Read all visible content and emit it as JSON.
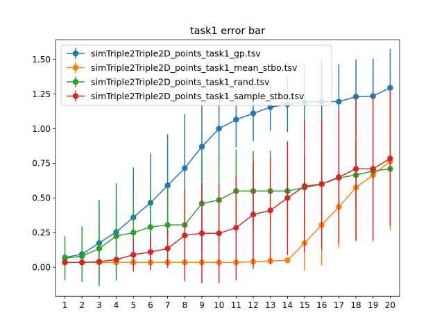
{
  "chart_data": {
    "type": "line",
    "title": "task1 error bar",
    "xlabel": "",
    "ylabel": "",
    "x": [
      1,
      2,
      3,
      4,
      5,
      6,
      7,
      8,
      9,
      10,
      11,
      12,
      13,
      14,
      15,
      16,
      17,
      18,
      19,
      20
    ],
    "xlim": [
      0.45,
      20.55
    ],
    "ylim": [
      -0.21,
      1.64
    ],
    "yticks": [
      0.0,
      0.25,
      0.5,
      0.75,
      1.0,
      1.25,
      1.5
    ],
    "ytick_labels": [
      "0.00",
      "0.25",
      "0.50",
      "0.75",
      "1.00",
      "1.25",
      "1.50"
    ],
    "grid": false,
    "legend_position": "upper-left",
    "series": [
      {
        "name": "simTriple2Triple2D_points_task1_gp.tsv",
        "color": "#1f77b4",
        "values": [
          0.07,
          0.095,
          0.175,
          0.255,
          0.36,
          0.465,
          0.59,
          0.715,
          0.87,
          1.0,
          1.065,
          1.11,
          1.155,
          1.175,
          1.19,
          1.195,
          1.195,
          1.23,
          1.235,
          1.295
        ],
        "errors": [
          0.0,
          0.2,
          0.31,
          0.35,
          0.36,
          0.355,
          0.37,
          0.39,
          0.35,
          0.25,
          0.2,
          0.2,
          0.17,
          0.2,
          0.27,
          0.3,
          0.27,
          0.27,
          0.27,
          0.28
        ]
      },
      {
        "name": "simTriple2Triple2D_points_task1_mean_stbo.tsv",
        "color": "#ff7f0e",
        "values": [
          0.035,
          0.035,
          0.035,
          0.035,
          0.035,
          0.035,
          0.035,
          0.035,
          0.035,
          0.035,
          0.035,
          0.04,
          0.045,
          0.05,
          0.175,
          0.305,
          0.435,
          0.575,
          0.665,
          0.765
        ],
        "errors": [
          0.0,
          0.0,
          0.0,
          0.0,
          0.0,
          0.0,
          0.0,
          0.0,
          0.0,
          0.0,
          0.0,
          0.0,
          0.0,
          0.0,
          0.2,
          0.29,
          0.3,
          0.38,
          0.4,
          0.5
        ]
      },
      {
        "name": "simTriple2Triple2D_points_task1_rand.tsv",
        "color": "#2ca02c",
        "values": [
          0.065,
          0.08,
          0.135,
          0.225,
          0.25,
          0.29,
          0.305,
          0.305,
          0.46,
          0.485,
          0.55,
          0.55,
          0.55,
          0.55,
          0.575,
          0.6,
          0.645,
          0.665,
          0.695,
          0.71
        ],
        "errors": [
          0.16,
          0.18,
          0.21,
          0.27,
          0.28,
          0.28,
          0.28,
          0.28,
          0.35,
          0.32,
          0.3,
          0.29,
          0.29,
          0.29,
          0.24,
          0.24,
          0.25,
          0.24,
          0.23,
          0.2
        ]
      },
      {
        "name": "simTriple2Triple2D_points_task1_sample_stbo.tsv",
        "color": "#d62728",
        "values": [
          0.035,
          0.035,
          0.04,
          0.055,
          0.09,
          0.11,
          0.135,
          0.23,
          0.245,
          0.245,
          0.285,
          0.38,
          0.41,
          0.5,
          0.585,
          0.6,
          0.65,
          0.71,
          0.71,
          0.785
        ],
        "errors": [
          0.0,
          0.0,
          0.0,
          0.0,
          0.12,
          0.13,
          0.14,
          0.33,
          0.36,
          0.36,
          0.38,
          0.39,
          0.39,
          0.41,
          0.48,
          0.47,
          0.48,
          0.52,
          0.52,
          0.49
        ]
      }
    ]
  }
}
